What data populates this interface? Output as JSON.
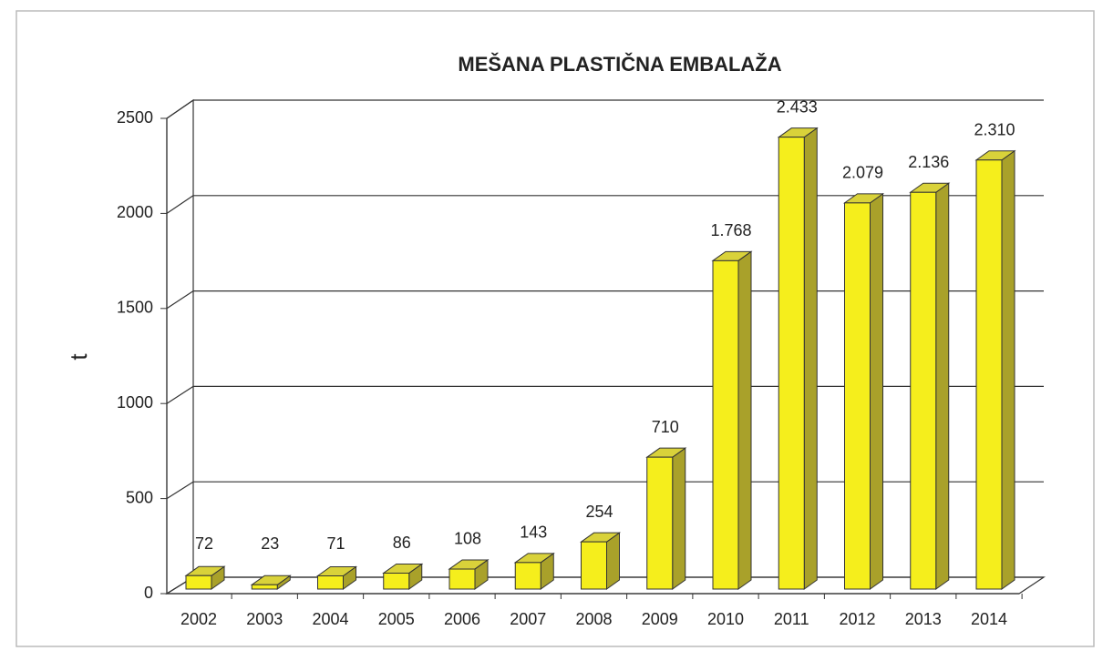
{
  "chart_data": {
    "type": "bar3d",
    "title": "MEŠANA PLASTIČNA EMBALAŽA",
    "y_label": "t",
    "categories": [
      "2002",
      "2003",
      "2004",
      "2005",
      "2006",
      "2007",
      "2008",
      "2009",
      "2010",
      "2011",
      "2012",
      "2013",
      "2014"
    ],
    "values": [
      72,
      23,
      71,
      86,
      108,
      143,
      254,
      710,
      1768,
      2433,
      2079,
      2136,
      2310
    ],
    "value_labels": [
      "72",
      "23",
      "71",
      "86",
      "108",
      "143",
      "254",
      "710",
      "1.768",
      "2.433",
      "2.079",
      "2.136",
      "2.310"
    ],
    "color": "#f5ee1c",
    "ylim": [
      0,
      2500
    ],
    "yticks": [
      0,
      500,
      1000,
      1500,
      2000,
      2500
    ],
    "grid": true
  }
}
